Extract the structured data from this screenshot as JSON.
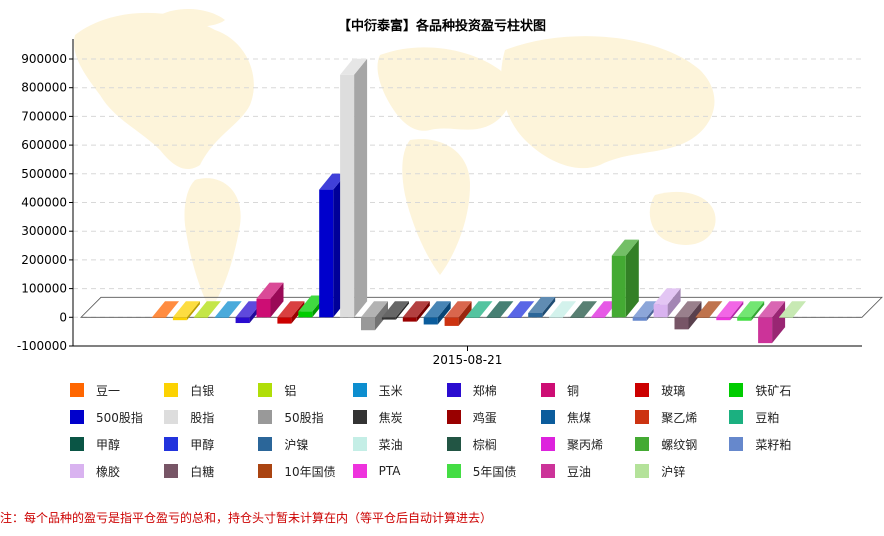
{
  "chart_data": {
    "type": "bar",
    "title": "【中衍泰富】各品种投资盈亏柱状图",
    "xlabel": "",
    "ylabel": "",
    "categories": [
      "2015-08-21"
    ],
    "yticks": [
      -100000,
      0,
      100000,
      200000,
      300000,
      400000,
      500000,
      600000,
      700000,
      800000,
      900000
    ],
    "ylim": [
      -100000,
      900000
    ],
    "grid": true,
    "legend_position": "bottom",
    "series": [
      {
        "name": "豆一",
        "color": "#ff6600",
        "values": [
          0
        ]
      },
      {
        "name": "白银",
        "color": "#fcd202",
        "values": [
          -10000
        ]
      },
      {
        "name": "铝",
        "color": "#b0de09",
        "values": [
          0
        ]
      },
      {
        "name": "玉米",
        "color": "#0d8ecf",
        "values": [
          0
        ]
      },
      {
        "name": "郑棉",
        "color": "#2a0cd0",
        "values": [
          -20000
        ]
      },
      {
        "name": "铜",
        "color": "#cd0d74",
        "values": [
          65000
        ]
      },
      {
        "name": "玻璃",
        "color": "#cc0000",
        "values": [
          -22000
        ]
      },
      {
        "name": "铁矿石",
        "color": "#00cc00",
        "values": [
          20000
        ]
      },
      {
        "name": "500股指",
        "color": "#0000cc",
        "values": [
          445000
        ]
      },
      {
        "name": "股指",
        "color": "#dddddd",
        "values": [
          845000
        ]
      },
      {
        "name": "50股指",
        "color": "#999999",
        "values": [
          -45000
        ]
      },
      {
        "name": "焦炭",
        "color": "#333333",
        "values": [
          -8000
        ]
      },
      {
        "name": "鸡蛋",
        "color": "#990000",
        "values": [
          -15000
        ]
      },
      {
        "name": "焦煤",
        "color": "#0b5c9c",
        "values": [
          -25000
        ]
      },
      {
        "name": "聚乙烯",
        "color": "#cc3311",
        "values": [
          -30000
        ]
      },
      {
        "name": "豆粕",
        "color": "#1bb080",
        "values": [
          0
        ]
      },
      {
        "name": "甲醇",
        "color": "#0a5545",
        "values": [
          0
        ]
      },
      {
        "name": "甲醇",
        "color": "#2233dd",
        "values": [
          0
        ]
      },
      {
        "name": "沪镍",
        "color": "#2b6699",
        "values": [
          15000
        ]
      },
      {
        "name": "菜油",
        "color": "#c4eee6",
        "values": [
          0
        ]
      },
      {
        "name": "棕榈",
        "color": "#225544",
        "values": [
          0
        ]
      },
      {
        "name": "聚丙烯",
        "color": "#dd22dd",
        "values": [
          0
        ]
      },
      {
        "name": "螺纹钢",
        "color": "#44aa33",
        "values": [
          215000
        ]
      },
      {
        "name": "菜籽粕",
        "color": "#6688cc",
        "values": [
          -12000
        ]
      },
      {
        "name": "橡胶",
        "color": "#d9b3f0",
        "values": [
          45000
        ]
      },
      {
        "name": "白糖",
        "color": "#775566",
        "values": [
          -42000
        ]
      },
      {
        "name": "10年国债",
        "color": "#aa4411",
        "values": [
          0
        ]
      },
      {
        "name": "PTA",
        "color": "#ee33dd",
        "values": [
          -10000
        ]
      },
      {
        "name": "5年国债",
        "color": "#44dd44",
        "values": [
          -12000
        ]
      },
      {
        "name": "豆油",
        "color": "#cc3399",
        "values": [
          -90000
        ]
      },
      {
        "name": "沪锌",
        "color": "#b4e29a",
        "values": [
          0
        ]
      }
    ]
  },
  "footnote": "注：每个品种的盈亏是指平仓盈亏的总和，持仓头寸暂未计算在内（等平仓后自动计算进去）"
}
